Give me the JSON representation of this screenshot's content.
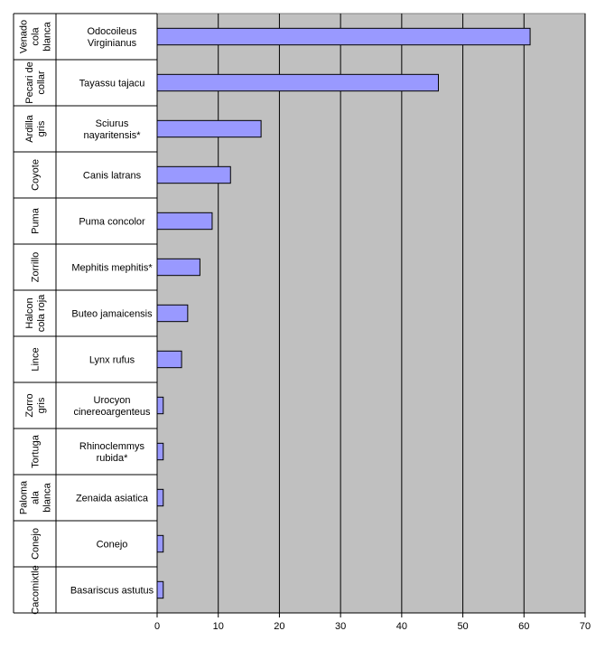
{
  "chart_data": {
    "type": "bar",
    "orientation": "horizontal",
    "title": "",
    "xlabel": "",
    "ylabel": "",
    "xlim": [
      0,
      70
    ],
    "x_ticks": [
      0,
      10,
      20,
      30,
      40,
      50,
      60,
      70
    ],
    "grid": "vertical",
    "legend": "none",
    "colors": {
      "bar": "#9999ff",
      "bar_edge": "#000000",
      "plot_background": "#c0c0c0",
      "outer_background": "#ffffff"
    },
    "rows": [
      {
        "group": [
          "Venado",
          "cola",
          "blanca"
        ],
        "category": [
          "Odocoileus",
          "Virginianus"
        ],
        "value": 61
      },
      {
        "group": [
          "Pecari de",
          "collar"
        ],
        "category": [
          "Tayassu tajacu"
        ],
        "value": 46
      },
      {
        "group": [
          "Ardilla",
          "gris"
        ],
        "category": [
          "Sciurus",
          "nayaritensis*"
        ],
        "value": 17
      },
      {
        "group": [
          "Coyote"
        ],
        "category": [
          "Canis latrans"
        ],
        "value": 12
      },
      {
        "group": [
          "Puma"
        ],
        "category": [
          "Puma concolor"
        ],
        "value": 9
      },
      {
        "group": [
          "Zorrillo"
        ],
        "category": [
          "Mephitis mephitis*"
        ],
        "value": 7
      },
      {
        "group": [
          "Halcon",
          "cola roja"
        ],
        "category": [
          "Buteo jamaicensis"
        ],
        "value": 5
      },
      {
        "group": [
          "Lince"
        ],
        "category": [
          "Lynx rufus"
        ],
        "value": 4
      },
      {
        "group": [
          "Zorro",
          "gris"
        ],
        "category": [
          "Urocyon",
          "cinereoargenteus"
        ],
        "value": 1
      },
      {
        "group": [
          "Tortuga"
        ],
        "category": [
          "Rhinoclemmys",
          "rubida*"
        ],
        "value": 1
      },
      {
        "group": [
          "Paloma",
          "ala",
          "blanca"
        ],
        "category": [
          "Zenaida asiatica"
        ],
        "value": 1
      },
      {
        "group": [
          "Conejo"
        ],
        "category": [
          "Conejo"
        ],
        "value": 1
      },
      {
        "group": [
          "Cacomixtle"
        ],
        "category": [
          "Basariscus astutus"
        ],
        "value": 1
      }
    ]
  }
}
